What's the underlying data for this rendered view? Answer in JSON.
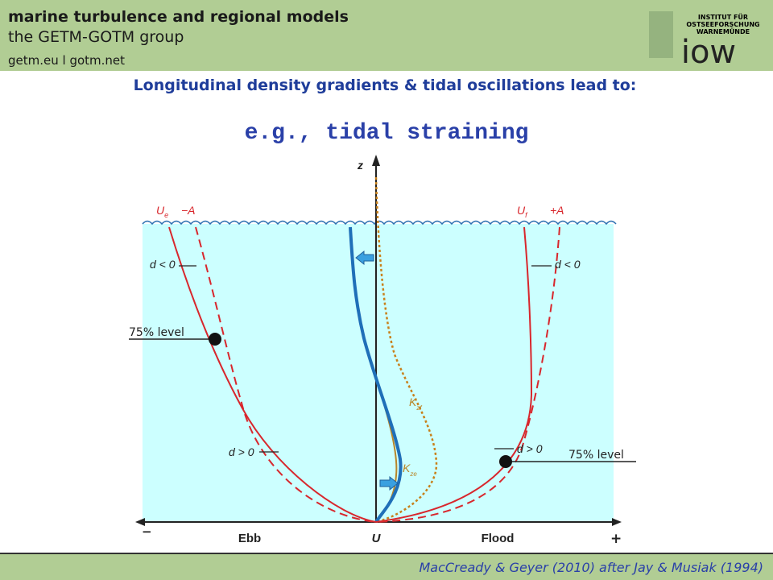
{
  "header": {
    "title": "marine turbulence and regional models",
    "subtitle": "the GETM-GOTM group",
    "links": "getm.eu  l  gotm.net",
    "logo_lines": [
      "INSTITUT FÜR",
      "OSTSEEFORSCHUNG",
      "WARNEMÜNDE"
    ],
    "logo_word": "iow"
  },
  "slide": {
    "heading": "Longitudinal density gradients & tidal oscillations lead to:",
    "subheading": "e.g., tidal straining"
  },
  "diagram": {
    "z_axis": "z",
    "ebb_velocity": {
      "main": "U",
      "sub": "e"
    },
    "ebb_amplitude": "−A",
    "flood_velocity": {
      "main": "U",
      "sub": "f"
    },
    "flood_amplitude": "+A",
    "d_labels": [
      "d < 0",
      "d < 0",
      "d > 0",
      "d > 0"
    ],
    "level_labels": [
      "75% level",
      "75% level"
    ],
    "kz_flood": {
      "main": "K",
      "sub": "zf"
    },
    "kz_ebb": {
      "main": "K",
      "sub": "ze"
    },
    "x_axis": {
      "minus": "−",
      "ebb": "Ebb",
      "origin": "U",
      "flood": "Flood",
      "plus": "+"
    }
  },
  "footer": {
    "citation": "MacCready & Geyer (2010) after Jay & Musiak (1994)"
  }
}
